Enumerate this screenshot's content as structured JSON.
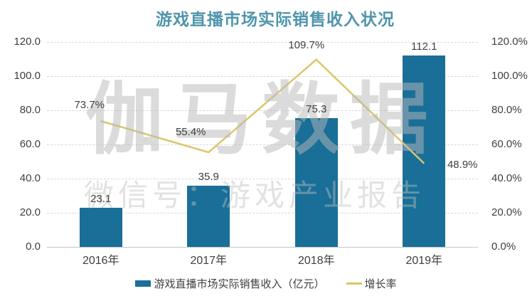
{
  "title": "游戏直播市场实际销售收入状况",
  "watermark": {
    "brand": "伽马数据",
    "wechat": "微信号：游戏产业报告"
  },
  "colors": {
    "bar": "#196f98",
    "line": "#dcc66a",
    "title": "#4f95ab",
    "axis_text": "#3f3f3f",
    "gridline": "#d8d8d8"
  },
  "chart_data": {
    "type": "bar",
    "subtype": "combo-bar-line",
    "title": "游戏直播市场实际销售收入状况",
    "categories": [
      "2016年",
      "2017年",
      "2018年",
      "2019年"
    ],
    "series": [
      {
        "name": "游戏直播市场实际销售收入（亿元）",
        "type": "bar",
        "axis": "left",
        "color": "#196f98",
        "values": [
          23.1,
          35.9,
          75.3,
          112.1
        ],
        "data_labels": [
          "23.1",
          "35.9",
          "75.3",
          "112.1"
        ]
      },
      {
        "name": "增长率",
        "type": "line",
        "axis": "right",
        "color": "#dcc66a",
        "values": [
          73.7,
          55.4,
          109.7,
          48.9
        ],
        "data_labels": [
          "73.7%",
          "55.4%",
          "109.7%",
          "48.9%"
        ]
      }
    ],
    "left_axis": {
      "min": 0,
      "max": 120,
      "step": 20,
      "tick_labels": [
        "0.0",
        "20.0",
        "40.0",
        "60.0",
        "80.0",
        "100.0",
        "120.0"
      ]
    },
    "right_axis": {
      "min": 0,
      "max": 120,
      "step": 20,
      "tick_labels": [
        "0.0%",
        "20.0%",
        "40.0%",
        "60.0%",
        "80.0%",
        "100.0%",
        "120.0%"
      ]
    },
    "grid": "horizontal-dashed",
    "legend_position": "bottom"
  }
}
